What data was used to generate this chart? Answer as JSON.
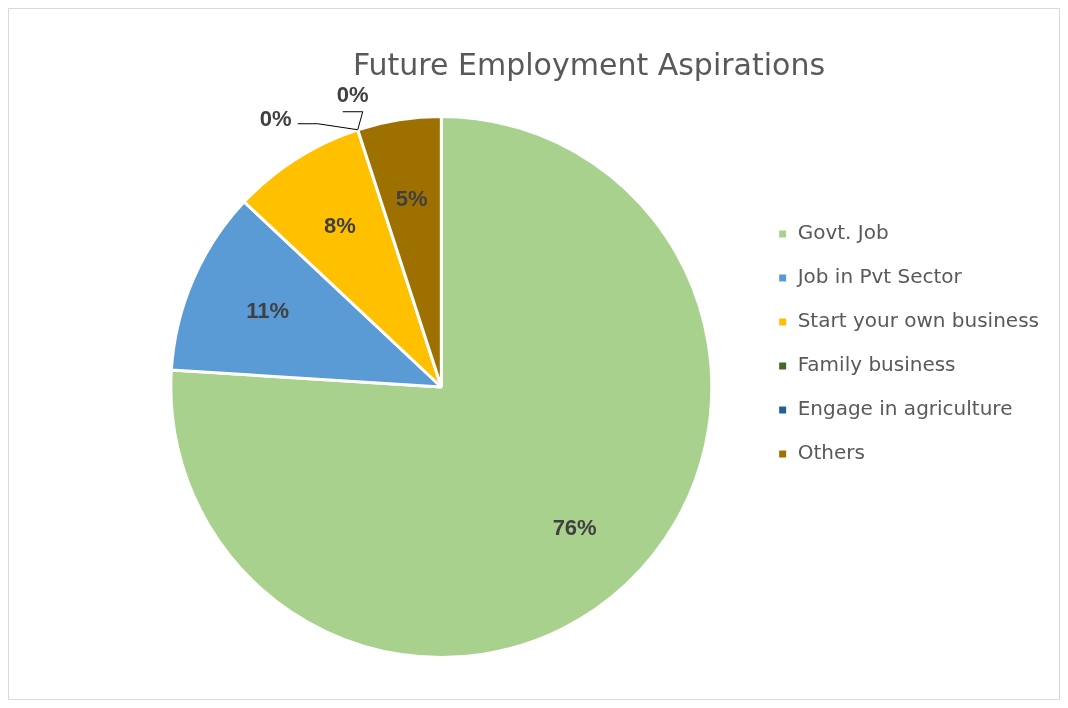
{
  "chart_data": {
    "type": "pie",
    "title": "Future Employment Aspirations",
    "categories": [
      "Govt. Job",
      "Job in Pvt Sector",
      "Start your own business",
      "Family business",
      "Engage in agriculture",
      "Others"
    ],
    "values": [
      76,
      11,
      8,
      0,
      0,
      5
    ],
    "colors": [
      "#a9d18e",
      "#5b9bd5",
      "#ffc000",
      "#43682b",
      "#255e91",
      "#9e7000"
    ],
    "value_labels": [
      "76%",
      "11%",
      "8%",
      "0%",
      "0%",
      "5%"
    ],
    "legend": "right"
  }
}
